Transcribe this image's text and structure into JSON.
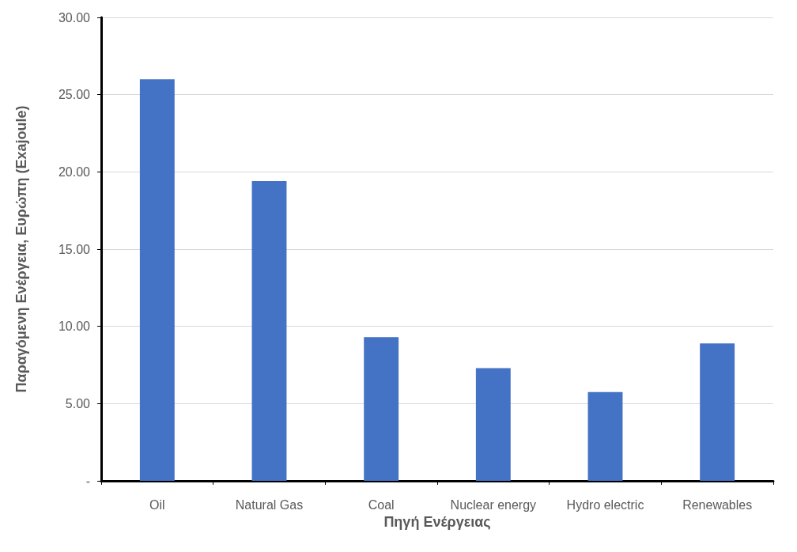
{
  "chart_data": {
    "type": "bar",
    "xlabel": "Πηγή Ενέργειας",
    "ylabel": "Παραγόμενη Ενέργεια, Ευρώπη (Exajoule)",
    "categories": [
      "Oil",
      "Natural Gas",
      "Coal",
      "Nuclear energy",
      "Hydro electric",
      "Renewables"
    ],
    "values": [
      26.0,
      19.4,
      9.3,
      7.3,
      5.75,
      8.9
    ],
    "color": "#4472c4",
    "ylim": [
      0,
      30
    ],
    "yticks": [
      {
        "value": 0,
        "label": "-"
      },
      {
        "value": 5,
        "label": "5.00"
      },
      {
        "value": 10,
        "label": "10.00"
      },
      {
        "value": 15,
        "label": "15.00"
      },
      {
        "value": 20,
        "label": "20.00"
      },
      {
        "value": 25,
        "label": "25.00"
      },
      {
        "value": 30,
        "label": "30.00"
      }
    ],
    "grid": "y"
  }
}
